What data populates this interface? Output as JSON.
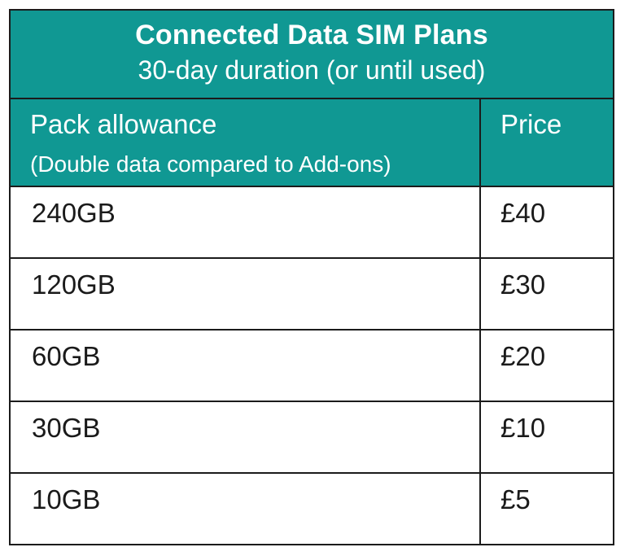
{
  "colors": {
    "accent_teal": "#109893",
    "border_black": "#1b1b1b",
    "header_text_white": "#ffffff",
    "body_text_black": "#1a1a1a",
    "page_background": "#ffffff"
  },
  "table": {
    "title": "Connected Data SIM Plans",
    "subtitle": "30-day duration (or until used)",
    "columns": {
      "allowance_label": "Pack allowance",
      "allowance_note": "(Double data compared to Add-ons)",
      "price_label": "Price"
    },
    "rows": [
      {
        "allowance": "240GB",
        "price": "£40"
      },
      {
        "allowance": "120GB",
        "price": "£30"
      },
      {
        "allowance": "60GB",
        "price": "£20"
      },
      {
        "allowance": "30GB",
        "price": "£10"
      },
      {
        "allowance": "10GB",
        "price": "£5"
      }
    ]
  }
}
